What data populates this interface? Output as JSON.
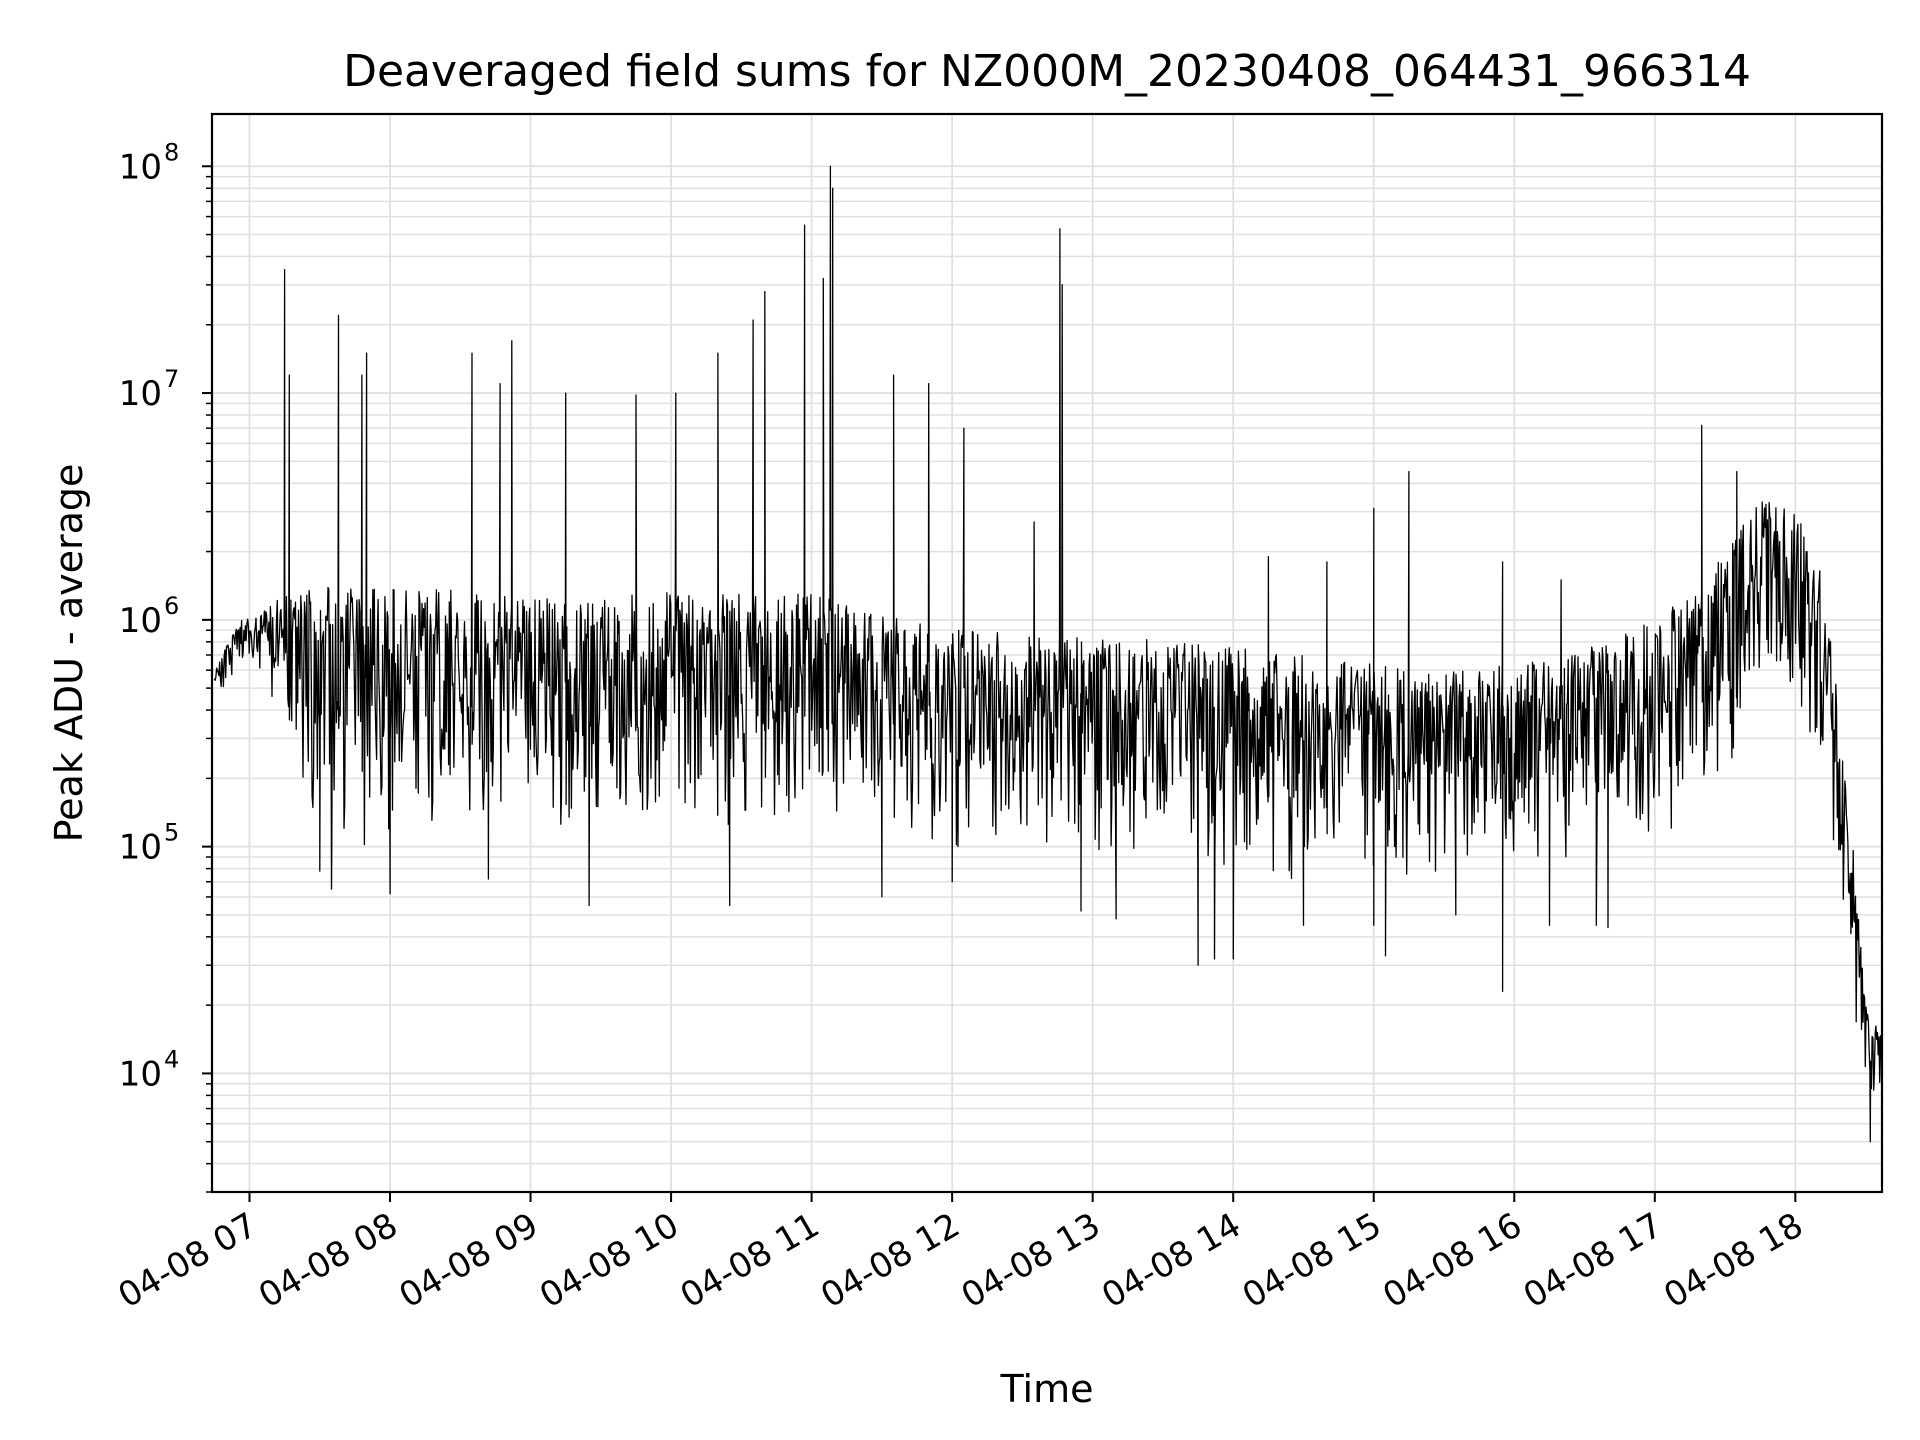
{
  "chart_data": {
    "type": "line",
    "title": "Deaveraged field sums for NZ000M_20230408_064431_966314",
    "xlabel": "Time",
    "ylabel": "Peak ADU - average",
    "xscale": "time",
    "yscale": "log",
    "xlim": [
      "04-08 06:44",
      "04-08 18:37"
    ],
    "ylim": [
      3000,
      170000000
    ],
    "grid": true,
    "legend": "none",
    "line_color": "#000000",
    "grid_color": "#e0e0e0",
    "x_ticks": [
      "04-08 07",
      "04-08 08",
      "04-08 09",
      "04-08 10",
      "04-08 11",
      "04-08 12",
      "04-08 13",
      "04-08 14",
      "04-08 15",
      "04-08 16",
      "04-08 17",
      "04-08 18"
    ],
    "y_ticks": [
      {
        "base": "10",
        "exp": "4",
        "value": 10000
      },
      {
        "base": "10",
        "exp": "5",
        "value": 100000
      },
      {
        "base": "10",
        "exp": "6",
        "value": 1000000
      },
      {
        "base": "10",
        "exp": "7",
        "value": 10000000
      },
      {
        "base": "10",
        "exp": "8",
        "value": 100000000
      }
    ],
    "series": [
      {
        "envelope_low": [
          [
            "06:45",
            430000
          ],
          [
            "06:55",
            600000
          ],
          [
            "07:05",
            550000
          ],
          [
            "07:15",
            300000
          ],
          [
            "07:30",
            100000
          ],
          [
            "07:45",
            80000
          ],
          [
            "08:00",
            90000
          ],
          [
            "08:15",
            100000
          ],
          [
            "08:30",
            95000
          ],
          [
            "08:45",
            90000
          ],
          [
            "09:00",
            95000
          ],
          [
            "09:15",
            95000
          ],
          [
            "09:30",
            110000
          ],
          [
            "09:45",
            110000
          ],
          [
            "10:00",
            100000
          ],
          [
            "10:15",
            110000
          ],
          [
            "10:30",
            100000
          ],
          [
            "10:45",
            100000
          ],
          [
            "11:00",
            110000
          ],
          [
            "11:15",
            120000
          ],
          [
            "11:30",
            110000
          ],
          [
            "11:45",
            100000
          ],
          [
            "12:00",
            90000
          ],
          [
            "12:15",
            110000
          ],
          [
            "12:30",
            90000
          ],
          [
            "12:45",
            70000
          ],
          [
            "13:00",
            75000
          ],
          [
            "13:15",
            70000
          ],
          [
            "13:30",
            60000
          ],
          [
            "13:45",
            70000
          ],
          [
            "14:00",
            65000
          ],
          [
            "14:15",
            70000
          ],
          [
            "14:30",
            65000
          ],
          [
            "14:45",
            70000
          ],
          [
            "15:00",
            70000
          ],
          [
            "15:15",
            70000
          ],
          [
            "15:30",
            75000
          ],
          [
            "15:45",
            70000
          ],
          [
            "16:00",
            80000
          ],
          [
            "16:15",
            70000
          ],
          [
            "16:30",
            75000
          ],
          [
            "16:45",
            80000
          ],
          [
            "17:00",
            90000
          ],
          [
            "17:15",
            110000
          ],
          [
            "17:30",
            200000
          ],
          [
            "17:45",
            500000
          ],
          [
            "18:00",
            400000
          ],
          [
            "18:10",
            150000
          ],
          [
            "18:20",
            50000
          ],
          [
            "18:30",
            8000
          ],
          [
            "18:37",
            6000
          ]
        ],
        "envelope_high": [
          [
            "06:45",
            600000
          ],
          [
            "06:55",
            1000000
          ],
          [
            "07:05",
            1100000
          ],
          [
            "07:15",
            1300000
          ],
          [
            "07:30",
            1400000
          ],
          [
            "07:45",
            1400000
          ],
          [
            "08:00",
            1400000
          ],
          [
            "08:15",
            1400000
          ],
          [
            "08:30",
            1400000
          ],
          [
            "08:45",
            1300000
          ],
          [
            "09:00",
            1300000
          ],
          [
            "09:15",
            1300000
          ],
          [
            "09:30",
            1300000
          ],
          [
            "09:45",
            1300000
          ],
          [
            "10:00",
            1350000
          ],
          [
            "10:15",
            1300000
          ],
          [
            "10:30",
            1300000
          ],
          [
            "10:45",
            1300000
          ],
          [
            "11:00",
            1300000
          ],
          [
            "11:15",
            1200000
          ],
          [
            "11:30",
            1100000
          ],
          [
            "11:45",
            1000000
          ],
          [
            "12:00",
            950000
          ],
          [
            "12:15",
            900000
          ],
          [
            "12:30",
            850000
          ],
          [
            "12:45",
            850000
          ],
          [
            "13:00",
            850000
          ],
          [
            "13:15",
            850000
          ],
          [
            "13:30",
            800000
          ],
          [
            "13:45",
            800000
          ],
          [
            "14:00",
            750000
          ],
          [
            "14:15",
            750000
          ],
          [
            "14:30",
            700000
          ],
          [
            "14:45",
            650000
          ],
          [
            "15:00",
            650000
          ],
          [
            "15:15",
            600000
          ],
          [
            "15:30",
            600000
          ],
          [
            "15:45",
            600000
          ],
          [
            "16:00",
            650000
          ],
          [
            "16:15",
            650000
          ],
          [
            "16:30",
            750000
          ],
          [
            "16:45",
            850000
          ],
          [
            "17:00",
            1000000
          ],
          [
            "17:15",
            1300000
          ],
          [
            "17:30",
            2000000
          ],
          [
            "17:45",
            3500000
          ],
          [
            "18:00",
            3000000
          ],
          [
            "18:10",
            1800000
          ],
          [
            "18:20",
            400000
          ],
          [
            "18:30",
            20000
          ],
          [
            "18:37",
            15000
          ]
        ],
        "spikes": [
          [
            "07:15",
            35000000
          ],
          [
            "07:17",
            12000000
          ],
          [
            "07:38",
            22000000
          ],
          [
            "07:48",
            12000000
          ],
          [
            "07:50",
            15000000
          ],
          [
            "08:35",
            15000000
          ],
          [
            "08:47",
            11000000
          ],
          [
            "08:52",
            17000000
          ],
          [
            "09:15",
            10000000
          ],
          [
            "09:45",
            9800000
          ],
          [
            "10:02",
            10000000
          ],
          [
            "10:20",
            15000000
          ],
          [
            "10:35",
            21000000
          ],
          [
            "10:40",
            28000000
          ],
          [
            "10:57",
            55000000
          ],
          [
            "11:05",
            32000000
          ],
          [
            "11:08",
            100000000
          ],
          [
            "11:09",
            80000000
          ],
          [
            "11:35",
            12000000
          ],
          [
            "11:50",
            11000000
          ],
          [
            "12:05",
            7000000
          ],
          [
            "12:35",
            2700000
          ],
          [
            "12:46",
            53000000
          ],
          [
            "12:47",
            30000000
          ],
          [
            "14:15",
            1900000
          ],
          [
            "14:40",
            1800000
          ],
          [
            "15:00",
            3100000
          ],
          [
            "15:15",
            4500000
          ],
          [
            "15:55",
            1800000
          ],
          [
            "16:20",
            1500000
          ],
          [
            "17:20",
            7200000
          ],
          [
            "17:35",
            4500000
          ]
        ],
        "dips": [
          [
            "07:30",
            78000
          ],
          [
            "07:35",
            65000
          ],
          [
            "08:00",
            62000
          ],
          [
            "08:42",
            72000
          ],
          [
            "09:25",
            55000
          ],
          [
            "10:25",
            55000
          ],
          [
            "11:30",
            60000
          ],
          [
            "12:00",
            70000
          ],
          [
            "12:55",
            52000
          ],
          [
            "13:10",
            48000
          ],
          [
            "13:45",
            30000
          ],
          [
            "13:52",
            32000
          ],
          [
            "14:00",
            32000
          ],
          [
            "14:30",
            45000
          ],
          [
            "15:00",
            45000
          ],
          [
            "15:05",
            33000
          ],
          [
            "15:35",
            50000
          ],
          [
            "15:55",
            23000
          ],
          [
            "16:15",
            45000
          ],
          [
            "16:35",
            45000
          ],
          [
            "16:40",
            44000
          ],
          [
            "18:32",
            5000
          ]
        ]
      }
    ]
  }
}
